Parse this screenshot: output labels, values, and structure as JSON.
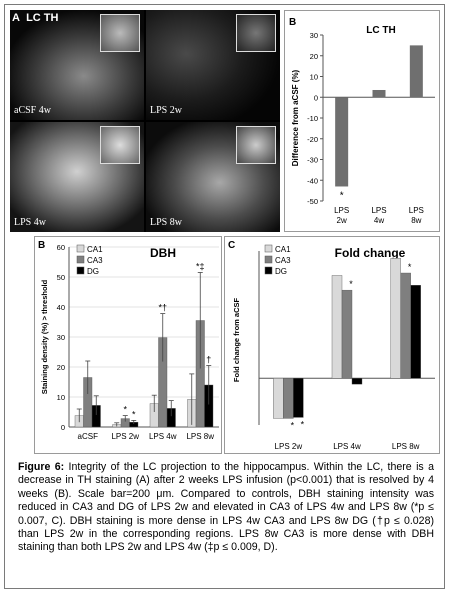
{
  "figure": {
    "caption_label": "Figure 6:",
    "caption_text": "Integrity of the LC projection to the hippocampus. Within the LC, there is a decrease in TH staining (A) after 2 weeks LPS infusion (p<0.001) that is resolved by 4 weeks (B). Scale bar=200 μm. Compared to controls, DBH staining intensity was reduced in CA3 and DG of LPS 2w and elevated in CA3 of LPS 4w and LPS 8w (*p ≤ 0.007, C). DBH staining is more dense in LPS 4w CA3 and LPS 8w DG (†p ≤ 0.028) than LPS 2w in the corresponding regions. LPS 8w CA3 is more dense with DBH staining than both LPS 2w and LPS 4w (‡p ≤ 0.009, D)."
  },
  "panelA": {
    "letter": "A",
    "title": "LC TH",
    "images": [
      {
        "label": "aCSF 4w",
        "brightness": 0.3
      },
      {
        "label": "LPS 2w",
        "brightness": 0.18
      },
      {
        "label": "LPS 4w",
        "brightness": 0.45
      },
      {
        "label": "LPS 8w",
        "brightness": 0.38
      }
    ]
  },
  "colors": {
    "ca1": "#d9d9d9",
    "ca3": "#7f7f7f",
    "dg": "#000000",
    "lcbar": "#6f6f6f",
    "grid": "#c8c8c8"
  },
  "chart_data": [
    {
      "panel": "B",
      "type": "bar",
      "title": "LC TH",
      "ylabel": "Difference from aCSF (%)",
      "categories": [
        "LPS 2w",
        "LPS 4w",
        "LPS 8w"
      ],
      "values": [
        -43,
        3.5,
        25
      ],
      "ylim": [
        -50,
        30
      ],
      "yticks": [
        -50,
        -40,
        -30,
        -20,
        -10,
        0,
        10,
        20,
        30
      ],
      "annotations": [
        {
          "category": "LPS 2w",
          "text": "*"
        }
      ]
    },
    {
      "panel": "B",
      "type": "bar",
      "title": "DBH",
      "ylabel": "Staining density (%) > threshold",
      "categories": [
        "aCSF",
        "LPS 2w",
        "LPS 4w",
        "LPS 8w"
      ],
      "ylim": [
        0,
        60
      ],
      "yticks": [
        0,
        10,
        20,
        30,
        40,
        50,
        60
      ],
      "series": [
        {
          "name": "CA1",
          "values": [
            3.8,
            0.8,
            7.8,
            9.2
          ],
          "errors": [
            2.2,
            0.6,
            2.8,
            8.5
          ]
        },
        {
          "name": "CA3",
          "values": [
            16.5,
            2.8,
            29.8,
            35.5
          ],
          "errors": [
            5.5,
            1.0,
            8.0,
            16.0
          ]
        },
        {
          "name": "DG",
          "values": [
            7.2,
            1.6,
            6.2,
            14.0
          ],
          "errors": [
            3.2,
            0.6,
            2.6,
            6.5
          ]
        }
      ],
      "annotations": [
        {
          "category": "LPS 2w",
          "series": "CA3",
          "text": "*"
        },
        {
          "category": "LPS 2w",
          "series": "DG",
          "text": "*"
        },
        {
          "category": "LPS 4w",
          "series": "CA3",
          "text": "*†"
        },
        {
          "category": "LPS 8w",
          "series": "CA3",
          "text": "*‡"
        },
        {
          "category": "LPS 8w",
          "series": "DG",
          "text": "†"
        }
      ],
      "legend": "top-left"
    },
    {
      "panel": "C",
      "type": "bar",
      "title": "Fold change",
      "ylabel": "Fold change from aCSF",
      "categories": [
        "LPS 2w",
        "LPS 4w",
        "LPS 8w"
      ],
      "ylim": [
        -1.2,
        2.6
      ],
      "series": [
        {
          "name": "CA1",
          "values": [
            -0.82,
            2.1,
            2.45
          ]
        },
        {
          "name": "CA3",
          "values": [
            -0.82,
            1.8,
            2.15
          ]
        },
        {
          "name": "DG",
          "values": [
            -0.8,
            -0.12,
            1.9
          ]
        }
      ],
      "annotations": [
        {
          "category": "LPS 2w",
          "series": "CA3",
          "text": "*"
        },
        {
          "category": "LPS 2w",
          "series": "DG",
          "text": "*"
        },
        {
          "category": "LPS 4w",
          "series": "CA3",
          "text": "*"
        },
        {
          "category": "LPS 8w",
          "series": "CA3",
          "text": "*"
        }
      ],
      "legend": "top-left"
    }
  ]
}
